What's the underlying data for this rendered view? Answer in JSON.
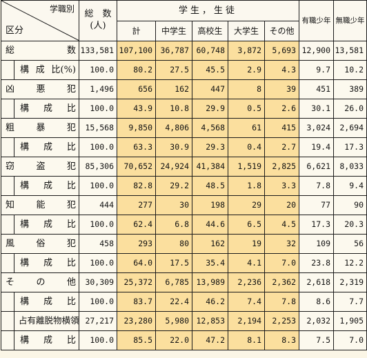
{
  "header": {
    "corner_top": "学職別",
    "corner_bottom": "区分",
    "total_line1": "総　数",
    "total_line2": "(人)",
    "students_group": "学生，生徒",
    "columns": [
      "計",
      "中学生",
      "高校生",
      "大学生",
      "その他"
    ],
    "employed": "有職少年",
    "unemployed": "無職少年"
  },
  "rows": [
    {
      "cat": [
        "総",
        "数"
      ],
      "values": [
        "133,581",
        "107,100",
        "36,787",
        "60,748",
        "3,872",
        "5,693",
        "12,900",
        "13,581"
      ],
      "sub": {
        "label": [
          "構",
          "成",
          "比(%)"
        ],
        "values": [
          "100.0",
          "80.2",
          "27.5",
          "45.5",
          "2.9",
          "4.3",
          "9.7",
          "10.2"
        ]
      }
    },
    {
      "cat": [
        "凶",
        "悪",
        "犯"
      ],
      "values": [
        "1,496",
        "656",
        "162",
        "447",
        "8",
        "39",
        "451",
        "389"
      ],
      "sub": {
        "label": [
          "構",
          "成",
          "比"
        ],
        "values": [
          "100.0",
          "43.9",
          "10.8",
          "29.9",
          "0.5",
          "2.6",
          "30.1",
          "26.0"
        ]
      }
    },
    {
      "cat": [
        "粗",
        "暴",
        "犯"
      ],
      "values": [
        "15,568",
        "9,850",
        "4,806",
        "4,568",
        "61",
        "415",
        "3,024",
        "2,694"
      ],
      "sub": {
        "label": [
          "構",
          "成",
          "比"
        ],
        "values": [
          "100.0",
          "63.3",
          "30.9",
          "29.3",
          "0.4",
          "2.7",
          "19.4",
          "17.3"
        ]
      }
    },
    {
      "cat": [
        "窃",
        "盗",
        "犯"
      ],
      "values": [
        "85,306",
        "70,652",
        "24,924",
        "41,384",
        "1,519",
        "2,825",
        "6,621",
        "8,033"
      ],
      "sub": {
        "label": [
          "構",
          "成",
          "比"
        ],
        "values": [
          "100.0",
          "82.8",
          "29.2",
          "48.5",
          "1.8",
          "3.3",
          "7.8",
          "9.4"
        ]
      }
    },
    {
      "cat": [
        "知",
        "能",
        "犯"
      ],
      "values": [
        "444",
        "277",
        "30",
        "198",
        "29",
        "20",
        "77",
        "90"
      ],
      "sub": {
        "label": [
          "構",
          "成",
          "比"
        ],
        "values": [
          "100.0",
          "62.4",
          "6.8",
          "44.6",
          "6.5",
          "4.5",
          "17.3",
          "20.3"
        ]
      }
    },
    {
      "cat": [
        "風",
        "俗",
        "犯"
      ],
      "values": [
        "458",
        "293",
        "80",
        "162",
        "19",
        "32",
        "109",
        "56"
      ],
      "sub": {
        "label": [
          "構",
          "成",
          "比"
        ],
        "values": [
          "100.0",
          "64.0",
          "17.5",
          "35.4",
          "4.1",
          "7.0",
          "23.8",
          "12.2"
        ]
      }
    },
    {
      "cat": [
        "そ",
        "の",
        "他"
      ],
      "values": [
        "30,309",
        "25,372",
        "6,785",
        "13,989",
        "2,236",
        "2,362",
        "2,618",
        "2,319"
      ],
      "sub": {
        "label": [
          "構",
          "成",
          "比"
        ],
        "values": [
          "100.0",
          "83.7",
          "22.4",
          "46.2",
          "7.4",
          "7.8",
          "8.6",
          "7.7"
        ]
      }
    }
  ],
  "extra": {
    "label": "占有離脱物横領",
    "values": [
      "27,217",
      "23,280",
      "5,980",
      "12,853",
      "2,194",
      "2,253",
      "2,032",
      "1,905"
    ],
    "sub": {
      "label": [
        "構",
        "成",
        "比"
      ],
      "values": [
        "100.0",
        "85.5",
        "22.0",
        "47.2",
        "8.1",
        "8.3",
        "7.5",
        "7.0"
      ]
    }
  }
}
